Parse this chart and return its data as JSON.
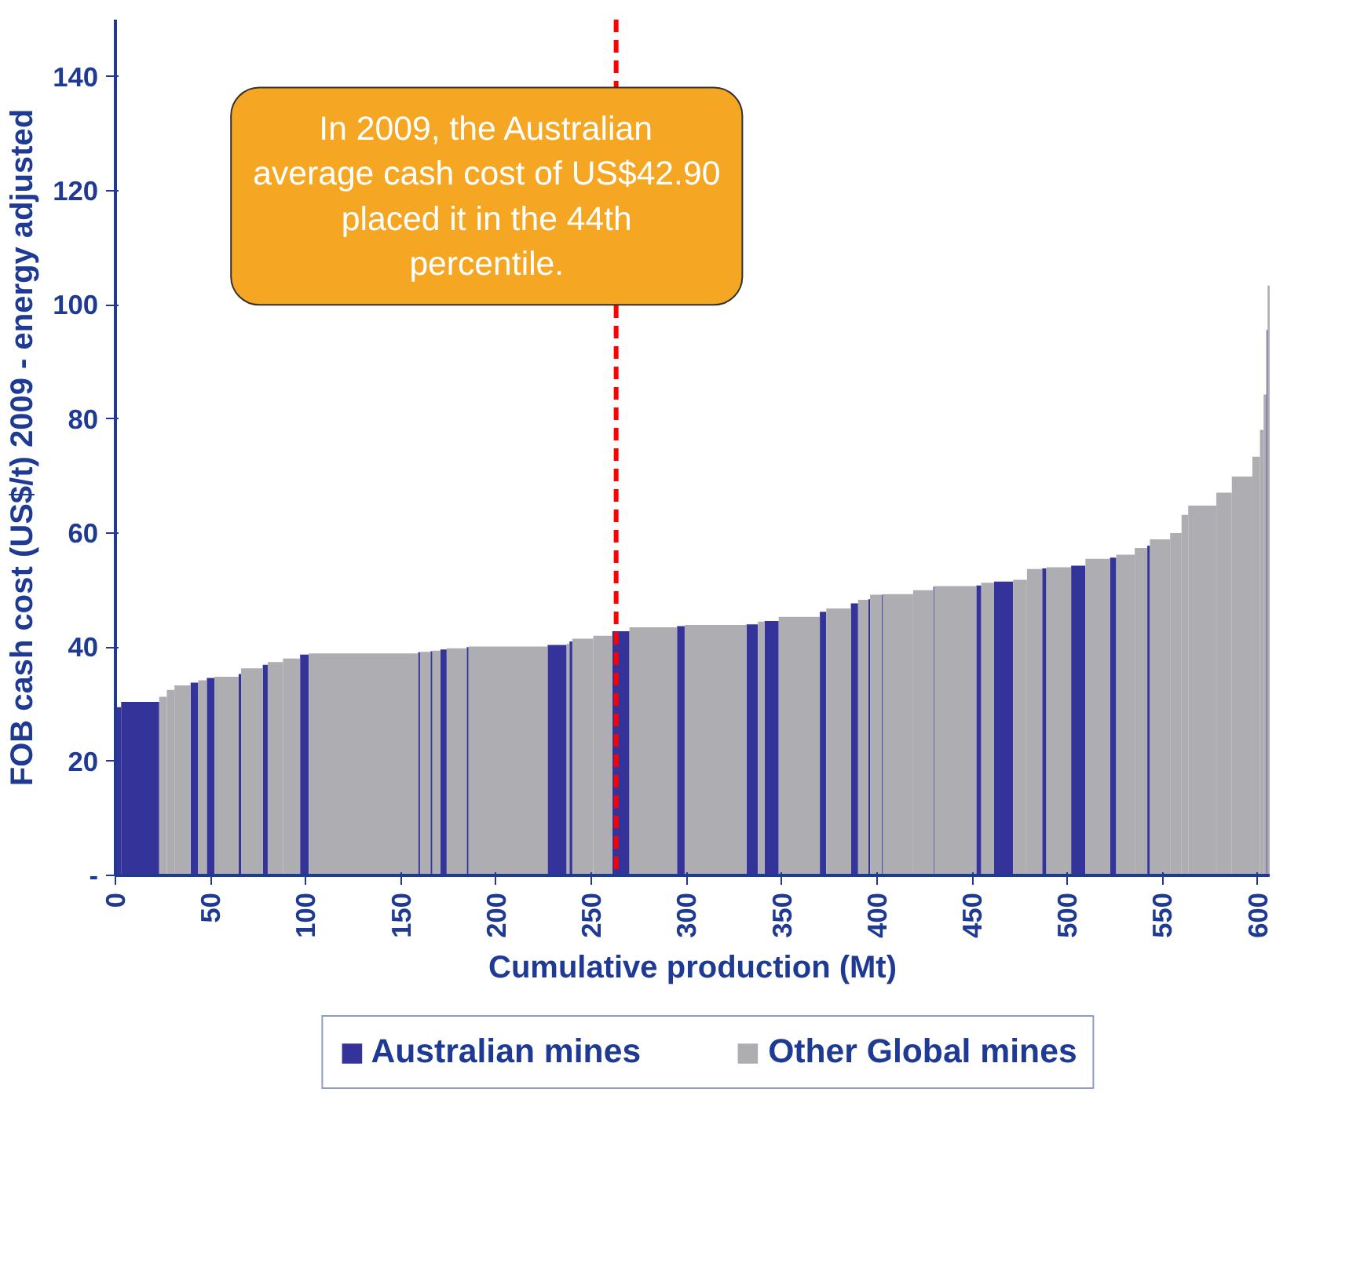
{
  "chart_data": {
    "type": "histogram",
    "xlabel": "Cumulative production (Mt)",
    "ylabel": "FOB cash cost (US$/t) 2009 - energy adjusted",
    "bins": [
      0,
      3,
      23,
      27,
      31,
      39.5,
      43.5,
      48,
      52,
      64.7,
      66,
      77.4,
      80,
      88,
      97,
      101.6,
      159,
      160,
      165.5,
      166.5,
      170.7,
      174,
      184.5,
      185.5,
      227,
      237,
      238.5,
      240,
      251,
      261,
      270,
      295,
      299,
      331.5,
      337.5,
      341,
      348.4,
      370,
      373.4,
      386.3,
      390.1,
      395.5,
      396.4,
      402.6,
      403.2,
      419,
      429.6,
      430.1,
      452.2,
      454.8,
      461.5,
      471.5,
      478.8,
      486.8,
      489,
      502,
      509.5,
      522.4,
      525.7,
      535.4,
      542,
      543.4,
      554,
      560,
      563.5,
      578.3,
      586.4,
      597.2,
      601.2,
      603.1,
      604.7,
      605.2,
      606.3
    ],
    "series": [
      {
        "name": "Australian mines",
        "color": "#333399",
        "values": [
          29.5,
          30.4,
          null,
          null,
          null,
          33.8,
          null,
          34.6,
          null,
          35.3,
          null,
          36.9,
          null,
          null,
          38.7,
          null,
          39.1,
          null,
          39.3,
          null,
          39.6,
          null,
          40.0,
          null,
          40.4,
          null,
          41.0,
          null,
          null,
          42.8,
          null,
          43.7,
          null,
          44.0,
          null,
          44.6,
          null,
          46.2,
          null,
          47.7,
          null,
          48.4,
          null,
          49.2,
          null,
          null,
          50.6,
          null,
          50.8,
          null,
          51.5,
          null,
          null,
          53.8,
          null,
          54.3,
          null,
          55.7,
          null,
          null,
          57.8,
          null,
          null,
          null,
          null,
          null,
          null,
          null,
          null,
          null,
          95.6,
          null
        ]
      },
      {
        "name": "Other Global mines",
        "color": "#aeaeb2",
        "values": [
          null,
          null,
          31.3,
          32.5,
          33.3,
          null,
          34.2,
          null,
          34.8,
          null,
          36.3,
          null,
          37.4,
          38.0,
          null,
          38.9,
          null,
          39.2,
          null,
          39.4,
          null,
          39.8,
          null,
          40.1,
          null,
          40.6,
          null,
          41.5,
          42.0,
          null,
          43.5,
          null,
          43.9,
          null,
          44.5,
          null,
          45.3,
          null,
          46.8,
          null,
          48.3,
          null,
          49.2,
          null,
          49.3,
          50.0,
          null,
          50.7,
          null,
          51.3,
          null,
          51.8,
          53.7,
          null,
          54.0,
          null,
          55.5,
          null,
          56.2,
          57.4,
          null,
          58.9,
          60.0,
          63.2,
          64.8,
          67.1,
          69.9,
          73.4,
          78.1,
          84.3,
          null,
          103.4
        ]
      }
    ],
    "xlim": [
      0,
      606.3
    ],
    "xticks": [
      0,
      50,
      100,
      150,
      200,
      250,
      300,
      350,
      400,
      450,
      500,
      550,
      600
    ],
    "ylim": [
      0,
      150
    ],
    "yticks": [
      {
        "value": 0,
        "label": "-"
      },
      20,
      40,
      60,
      80,
      100,
      120,
      140
    ],
    "ref_lines": [
      {
        "axis": "x",
        "value": 263,
        "color": "#ff0000",
        "line_style": "dashed"
      }
    ],
    "annotations": [
      "In 2009, the Australian average cash cost of US$42.90 placed it in the 44th percentile."
    ],
    "grid": false,
    "legend": "bottom"
  }
}
